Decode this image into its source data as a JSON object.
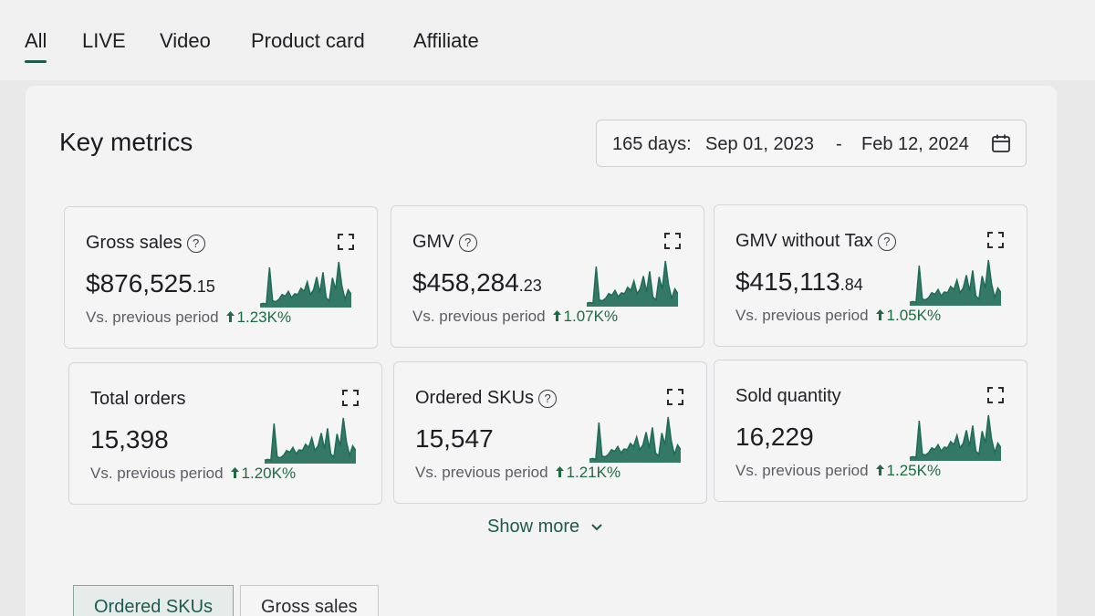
{
  "tabs": [
    {
      "label": "All",
      "active": true
    },
    {
      "label": "LIVE"
    },
    {
      "label": "Video"
    },
    {
      "label": "Product card"
    },
    {
      "label": "Affiliate"
    }
  ],
  "section": {
    "title": "Key metrics"
  },
  "date_range": {
    "days_label": "165 days:",
    "start": "Sep 01, 2023",
    "separator": "-",
    "end": "Feb 12, 2024",
    "icon": "calendar-icon"
  },
  "cards": [
    {
      "title": "Gross sales",
      "help": true,
      "value_main": "$876,525",
      "value_cents": ".15",
      "comparison": "Vs. previous period",
      "delta": "1.23K%"
    },
    {
      "title": "GMV",
      "help": true,
      "value_main": "$458,284",
      "value_cents": ".23",
      "comparison": "Vs. previous period",
      "delta": "1.07K%"
    },
    {
      "title": "GMV without Tax",
      "help": true,
      "value_main": "$415,113",
      "value_cents": ".84",
      "comparison": "Vs. previous period",
      "delta": "1.05K%"
    },
    {
      "title": "Total orders",
      "help": false,
      "value_main": "15,398",
      "value_cents": "",
      "comparison": "Vs. previous period",
      "delta": "1.20K%"
    },
    {
      "title": "Ordered SKUs",
      "help": true,
      "value_main": "15,547",
      "value_cents": "",
      "comparison": "Vs. previous period",
      "delta": "1.21K%"
    },
    {
      "title": "Sold quantity",
      "help": false,
      "value_main": "16,229",
      "value_cents": "",
      "comparison": "Vs. previous period",
      "delta": "1.25K%"
    }
  ],
  "show_more": {
    "label": "Show more"
  },
  "subtabs": [
    {
      "label": "Ordered SKUs",
      "active": true
    },
    {
      "label": "Gross sales"
    }
  ],
  "colors": {
    "accent": "#1e5a4f",
    "positive": "#1d6b45",
    "sparkline": "#1e6b57"
  },
  "sparkline": [
    2,
    3,
    2,
    48,
    6,
    5,
    8,
    14,
    12,
    18,
    10,
    15,
    14,
    22,
    18,
    30,
    14,
    20,
    36,
    16,
    42,
    10,
    6,
    35,
    20,
    55,
    25,
    8,
    20,
    14
  ]
}
